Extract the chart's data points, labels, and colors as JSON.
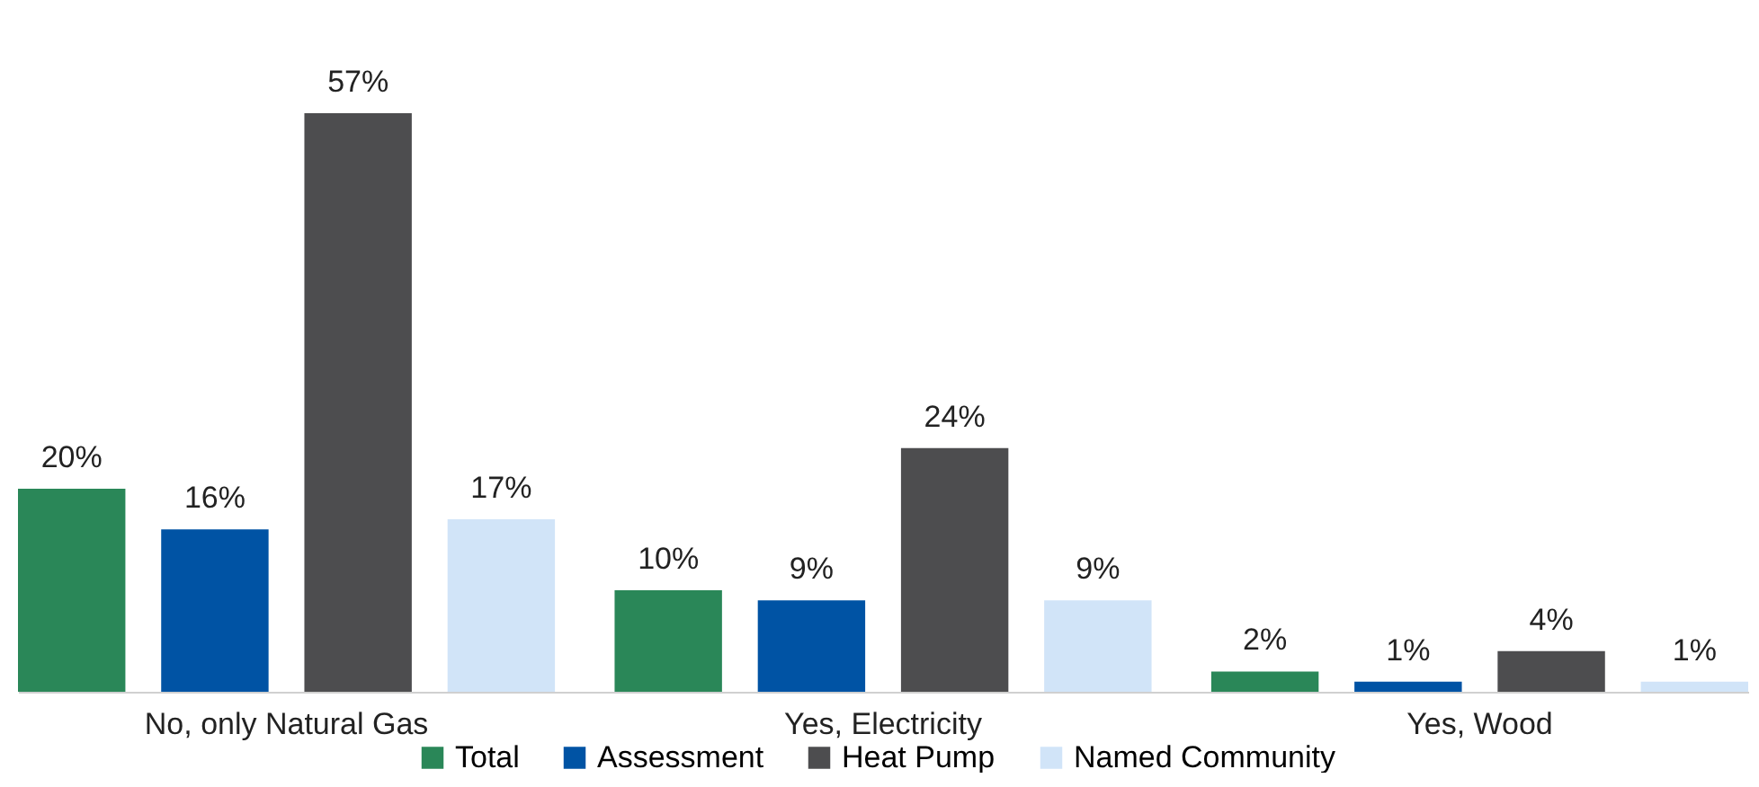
{
  "chart_data": {
    "type": "bar",
    "categories": [
      "No, only Natural Gas",
      "Yes, Electricity",
      "Yes, Wood"
    ],
    "series": [
      {
        "name": "Total",
        "color": "#2a8758",
        "values": [
          20,
          10,
          2
        ],
        "value_labels": [
          "20%",
          "10%",
          "2%"
        ]
      },
      {
        "name": "Assessment",
        "color": "#0053a4",
        "values": [
          16,
          9,
          1
        ],
        "value_labels": [
          "16%",
          "9%",
          "1%"
        ]
      },
      {
        "name": "Heat Pump",
        "color": "#4d4d4f",
        "values": [
          57,
          24,
          4
        ],
        "value_labels": [
          "57%",
          "24%",
          "4%"
        ]
      },
      {
        "name": "Named Community",
        "color": "#d1e4f8",
        "values": [
          17,
          9,
          1
        ],
        "value_labels": [
          "17%",
          "9%",
          "1%"
        ]
      }
    ],
    "legend": "bottom"
  }
}
